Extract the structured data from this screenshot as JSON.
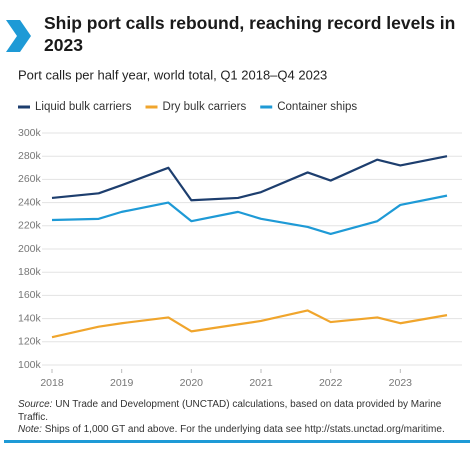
{
  "chart_data": {
    "type": "line",
    "title": "Ship port calls rebound, reaching record levels in 2023",
    "subtitle": "Port calls per half year, world total, Q1 2018–Q4 2023",
    "x": [
      2018,
      2018.67,
      2019,
      2019.67,
      2020,
      2020.67,
      2021,
      2021.67,
      2022,
      2022.67,
      2023,
      2023.67
    ],
    "series": [
      {
        "name": "Liquid bulk carriers",
        "color": "#1d3e6e",
        "values": [
          244,
          248,
          255,
          270,
          242,
          244,
          249,
          266,
          259,
          277,
          272,
          280
        ]
      },
      {
        "name": "Dry bulk carriers",
        "color": "#f0a52c",
        "values": [
          124,
          133,
          136,
          141,
          129,
          135,
          138,
          147,
          137,
          141,
          136,
          143
        ]
      },
      {
        "name": "Container ships",
        "color": "#1e9ad6",
        "values": [
          225,
          226,
          232,
          240,
          224,
          232,
          226,
          219,
          213,
          224,
          238,
          246
        ]
      }
    ],
    "xlim": [
      2018,
      2023.67
    ],
    "xticks": [
      2018,
      2019,
      2020,
      2021,
      2022,
      2023
    ],
    "ylim": [
      100,
      300
    ],
    "yticks": [
      {
        "value": 100,
        "label": "100k"
      },
      {
        "value": 120,
        "label": "120k"
      },
      {
        "value": 140,
        "label": "140k"
      },
      {
        "value": 160,
        "label": "160k"
      },
      {
        "value": 180,
        "label": "180k"
      },
      {
        "value": 200,
        "label": "200k"
      },
      {
        "value": 220,
        "label": "220k"
      },
      {
        "value": 240,
        "label": "240k"
      },
      {
        "value": 260,
        "label": "260k"
      },
      {
        "value": 280,
        "label": "280k"
      },
      {
        "value": 300,
        "label": "300k"
      }
    ],
    "grid": true,
    "source_label": "Source:",
    "source": "UN Trade and Development (UNCTAD) calculations, based on data provided by Marine Traffic.",
    "note_label": "Note:",
    "note": "Ships of 1,000 GT and above. For the underlying data see http://stats.unctad.org/maritime."
  }
}
